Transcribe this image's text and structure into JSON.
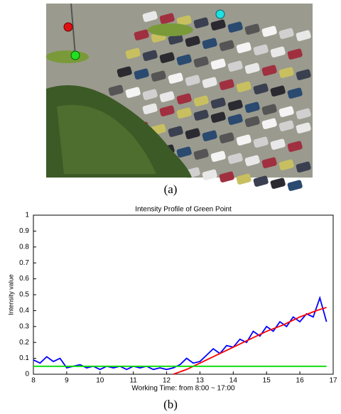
{
  "captions": [
    "(a)",
    "(b)"
  ],
  "chart_data": {
    "type": "line",
    "title": "Intensity Profile of Green Point",
    "x_label": "Working Time: from 8:00 ~ 17:00",
    "y_label": "Intensity value",
    "xlim": [
      8,
      17
    ],
    "ylim": [
      0,
      1
    ],
    "xticks": [
      8,
      9,
      10,
      11,
      12,
      13,
      14,
      15,
      16,
      17
    ],
    "yticks": [
      0,
      0.1,
      0.2,
      0.3,
      0.4,
      0.5,
      0.6,
      0.7,
      0.8,
      0.9,
      1
    ],
    "grid": false,
    "series": [
      {
        "color": "#0000ff",
        "x": [
          8.0,
          8.2,
          8.4,
          8.6,
          8.8,
          9.0,
          9.2,
          9.4,
          9.6,
          9.8,
          10.0,
          10.2,
          10.4,
          10.6,
          10.8,
          11.0,
          11.2,
          11.4,
          11.6,
          11.8,
          12.0,
          12.2,
          12.4,
          12.6,
          12.8,
          13.0,
          13.2,
          13.4,
          13.6,
          13.8,
          14.0,
          14.2,
          14.4,
          14.6,
          14.8,
          15.0,
          15.2,
          15.4,
          15.6,
          15.8,
          16.0,
          16.2,
          16.4,
          16.6,
          16.8
        ],
        "values": [
          0.09,
          0.07,
          0.11,
          0.08,
          0.1,
          0.04,
          0.05,
          0.06,
          0.04,
          0.05,
          0.03,
          0.05,
          0.04,
          0.05,
          0.03,
          0.05,
          0.04,
          0.05,
          0.03,
          0.04,
          0.03,
          0.04,
          0.06,
          0.1,
          0.07,
          0.08,
          0.12,
          0.16,
          0.13,
          0.18,
          0.17,
          0.22,
          0.2,
          0.27,
          0.24,
          0.3,
          0.27,
          0.33,
          0.3,
          0.36,
          0.33,
          0.38,
          0.36,
          0.48,
          0.33
        ]
      },
      {
        "color": "#ff0000",
        "x": [
          12.2,
          12.6,
          13.0,
          13.5,
          14.0,
          14.5,
          15.0,
          15.5,
          16.0,
          16.5,
          16.8
        ],
        "values": [
          0,
          0.03,
          0.07,
          0.12,
          0.17,
          0.22,
          0.27,
          0.31,
          0.36,
          0.4,
          0.42
        ]
      },
      {
        "color": "#00dd00",
        "x": [
          8,
          16.8
        ],
        "values": [
          0.05,
          0.05
        ]
      }
    ]
  }
}
